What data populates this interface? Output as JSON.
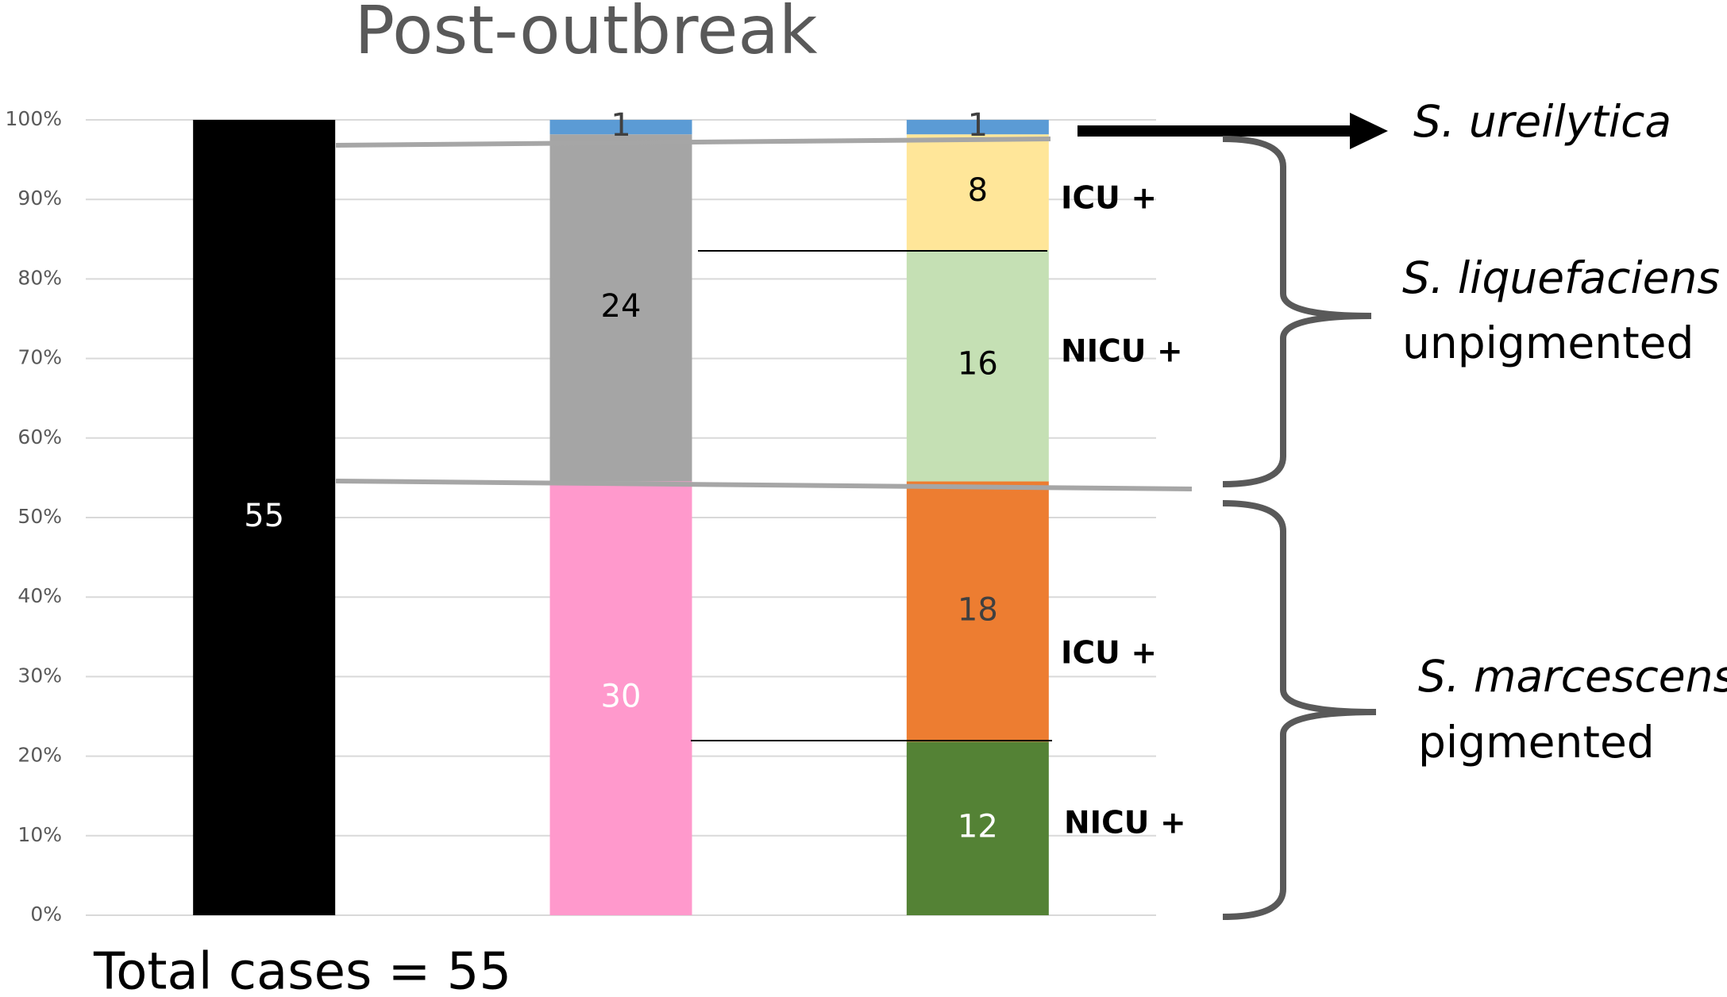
{
  "chart_data": {
    "type": "stacked_bar",
    "stack_mode": "percent",
    "title": "Post-outbreak",
    "categories": [
      null,
      null,
      null
    ],
    "series": [
      {
        "color": "#000000",
        "label_color": "#ffffff",
        "values": [
          55,
          null,
          null
        ]
      },
      {
        "color": "#ff99cc",
        "label_color": "#ffffff",
        "values": [
          null,
          30,
          null
        ]
      },
      {
        "color": "#548235",
        "label_color": "#ffffff",
        "values": [
          null,
          null,
          12
        ]
      },
      {
        "color": "#ed7d31",
        "label_color": "#404040",
        "values": [
          null,
          null,
          18
        ]
      },
      {
        "color": "#a5a5a5",
        "label_color": "#000000",
        "values": [
          null,
          24,
          null
        ]
      },
      {
        "color": "#c5e0b4",
        "label_color": "#000000",
        "values": [
          null,
          null,
          16
        ]
      },
      {
        "color": "#ffe699",
        "label_color": "#000000",
        "values": [
          null,
          null,
          8
        ]
      },
      {
        "color": "#5b9bd5",
        "label_color": "#404040",
        "values": [
          null,
          1,
          1
        ]
      }
    ],
    "ylim": [
      0,
      100
    ],
    "yticks": [
      {
        "value": 0,
        "label": "0%"
      },
      {
        "value": 10,
        "label": "10%"
      },
      {
        "value": 20,
        "label": "20%"
      },
      {
        "value": 30,
        "label": "30%"
      },
      {
        "value": 40,
        "label": "40%"
      },
      {
        "value": 50,
        "label": "50%"
      },
      {
        "value": 60,
        "label": "60%"
      },
      {
        "value": 70,
        "label": "70%"
      },
      {
        "value": 80,
        "label": "80%"
      },
      {
        "value": 90,
        "label": "90%"
      },
      {
        "value": 100,
        "label": "100%"
      }
    ],
    "grid": true,
    "annotations": [
      "ICU +",
      "NICU +",
      "ICU +",
      "NICU +",
      "S. ureilytica",
      "S. liquefaciens",
      "unpigmented",
      "S. marcescens",
      "pigmented",
      "Total cases = 55"
    ]
  }
}
